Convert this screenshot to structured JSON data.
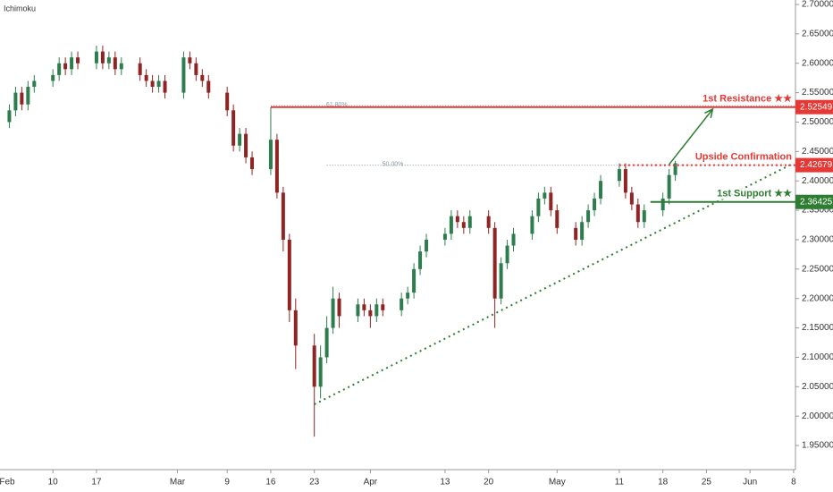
{
  "chart_data": {
    "type": "candlestick",
    "indicator": "Ichimoku",
    "x": [
      34,
      35,
      36,
      37,
      38,
      41,
      42,
      43,
      44,
      45,
      48,
      49,
      50,
      51,
      52,
      55,
      56,
      57,
      58,
      59,
      62,
      63,
      64,
      65,
      66,
      69,
      70,
      71,
      72,
      73,
      76,
      77,
      78,
      79,
      80,
      83,
      84,
      85,
      86,
      87,
      90,
      91,
      92,
      93,
      94,
      97,
      98,
      99,
      100,
      101,
      104,
      105,
      106,
      107,
      108,
      111,
      112,
      113,
      114,
      115,
      118,
      119,
      120,
      121,
      122,
      125,
      126,
      127,
      128,
      129,
      132,
      133,
      134,
      135,
      136,
      139,
      140,
      141
    ],
    "open": [
      2.5,
      2.52,
      2.55,
      2.53,
      2.56,
      2.57,
      2.58,
      2.6,
      2.59,
      2.61,
      2.6,
      2.62,
      2.6,
      2.61,
      2.59,
      2.6,
      2.58,
      2.57,
      2.56,
      2.57,
      2.55,
      2.61,
      2.6,
      2.58,
      2.57,
      2.55,
      2.52,
      2.46,
      2.48,
      2.44,
      2.42,
      2.47,
      2.38,
      2.3,
      2.18,
      2.12,
      2.05,
      2.1,
      2.15,
      2.2,
      2.17,
      2.19,
      2.18,
      2.17,
      2.19,
      2.18,
      2.2,
      2.21,
      2.25,
      2.28,
      2.3,
      2.31,
      2.34,
      2.33,
      2.32,
      2.34,
      2.32,
      2.2,
      2.26,
      2.29,
      2.31,
      2.34,
      2.37,
      2.38,
      2.35,
      2.32,
      2.3,
      2.33,
      2.35,
      2.37,
      2.4,
      2.42,
      2.38,
      2.36,
      2.33,
      2.35,
      2.37,
      2.41
    ],
    "high": [
      2.53,
      2.56,
      2.56,
      2.57,
      2.58,
      2.59,
      2.61,
      2.61,
      2.62,
      2.62,
      2.63,
      2.63,
      2.62,
      2.62,
      2.61,
      2.61,
      2.59,
      2.58,
      2.58,
      2.58,
      2.62,
      2.62,
      2.61,
      2.59,
      2.58,
      2.56,
      2.53,
      2.49,
      2.49,
      2.45,
      2.525,
      2.48,
      2.39,
      2.31,
      2.2,
      2.14,
      2.12,
      2.17,
      2.22,
      2.21,
      2.2,
      2.2,
      2.19,
      2.2,
      2.2,
      2.21,
      2.22,
      2.26,
      2.29,
      2.31,
      2.32,
      2.35,
      2.35,
      2.34,
      2.35,
      2.35,
      2.33,
      2.27,
      2.3,
      2.32,
      2.35,
      2.38,
      2.39,
      2.39,
      2.36,
      2.33,
      2.34,
      2.36,
      2.38,
      2.41,
      2.43,
      2.43,
      2.39,
      2.37,
      2.36,
      2.38,
      2.42,
      2.434
    ],
    "low": [
      2.49,
      2.51,
      2.52,
      2.52,
      2.55,
      2.56,
      2.57,
      2.58,
      2.58,
      2.59,
      2.59,
      2.59,
      2.59,
      2.58,
      2.58,
      2.57,
      2.56,
      2.55,
      2.55,
      2.54,
      2.54,
      2.59,
      2.57,
      2.56,
      2.54,
      2.51,
      2.45,
      2.45,
      2.43,
      2.41,
      2.41,
      2.37,
      2.28,
      2.16,
      2.08,
      1.965,
      2.03,
      2.09,
      2.14,
      2.15,
      2.16,
      2.17,
      2.15,
      2.16,
      2.17,
      2.17,
      2.19,
      2.2,
      2.24,
      2.27,
      2.29,
      2.3,
      2.32,
      2.31,
      2.31,
      2.31,
      2.15,
      2.19,
      2.25,
      2.28,
      2.3,
      2.33,
      2.36,
      2.34,
      2.31,
      2.29,
      2.29,
      2.32,
      2.34,
      2.36,
      2.39,
      2.37,
      2.35,
      2.32,
      2.32,
      2.34,
      2.36,
      2.4
    ],
    "close": [
      2.52,
      2.55,
      2.53,
      2.56,
      2.57,
      2.58,
      2.6,
      2.59,
      2.61,
      2.6,
      2.62,
      2.6,
      2.61,
      2.59,
      2.6,
      2.58,
      2.57,
      2.56,
      2.57,
      2.55,
      2.61,
      2.6,
      2.58,
      2.57,
      2.55,
      2.52,
      2.46,
      2.48,
      2.44,
      2.42,
      2.47,
      2.38,
      2.3,
      2.18,
      2.12,
      2.05,
      2.1,
      2.15,
      2.2,
      2.17,
      2.19,
      2.18,
      2.17,
      2.19,
      2.18,
      2.2,
      2.21,
      2.25,
      2.28,
      2.3,
      2.31,
      2.34,
      2.33,
      2.32,
      2.34,
      2.32,
      2.2,
      2.26,
      2.29,
      2.31,
      2.34,
      2.37,
      2.38,
      2.35,
      2.32,
      2.3,
      2.33,
      2.35,
      2.37,
      2.4,
      2.42,
      2.38,
      2.36,
      2.33,
      2.35,
      2.37,
      2.41,
      2.43
    ],
    "up_color": "#2e7d4f",
    "down_color": "#8e2424",
    "xlim": [
      32.5,
      160.3
    ],
    "ylim": [
      1.909,
      2.7076
    ],
    "xticks": [
      {
        "value": 32,
        "label": "Feb"
      },
      {
        "value": 41,
        "label": "10"
      },
      {
        "value": 48,
        "label": "17"
      },
      {
        "value": 61,
        "label": "Mar"
      },
      {
        "value": 69,
        "label": "9"
      },
      {
        "value": 76,
        "label": "16"
      },
      {
        "value": 83,
        "label": "23"
      },
      {
        "value": 92,
        "label": "Apr"
      },
      {
        "value": 104,
        "label": "13"
      },
      {
        "value": 111,
        "label": "20"
      },
      {
        "value": 122,
        "label": "May"
      },
      {
        "value": 132,
        "label": "11"
      },
      {
        "value": 139,
        "label": "18"
      },
      {
        "value": 146,
        "label": "25"
      },
      {
        "value": 153,
        "label": "Jun"
      },
      {
        "value": 160,
        "label": "8"
      }
    ],
    "yticks": [
      {
        "value": 1.95,
        "label": "1.95000"
      },
      {
        "value": 2.0,
        "label": "2.00000"
      },
      {
        "value": 2.05,
        "label": "2.05000"
      },
      {
        "value": 2.1,
        "label": "2.10000"
      },
      {
        "value": 2.15,
        "label": "2.15000"
      },
      {
        "value": 2.2,
        "label": "2.20000"
      },
      {
        "value": 2.25,
        "label": "2.25000"
      },
      {
        "value": 2.3,
        "label": "2.30000"
      },
      {
        "value": 2.35,
        "label": "2.35000"
      },
      {
        "value": 2.4,
        "label": "2.40000"
      },
      {
        "value": 2.45,
        "label": "2.45000"
      },
      {
        "value": 2.5,
        "label": "2.50000"
      },
      {
        "value": 2.55,
        "label": "2.55000"
      },
      {
        "value": 2.6,
        "label": "2.60000"
      },
      {
        "value": 2.65,
        "label": "2.65000"
      },
      {
        "value": 2.7,
        "label": "2.70000"
      }
    ],
    "levels": [
      {
        "name": "1st Resistance ★★",
        "value": 2.52549,
        "color": "#e53935",
        "start": 76,
        "style": "solid"
      },
      {
        "name": "Upside Confirmation",
        "value": 2.42679,
        "color": "#e53935",
        "start": 132,
        "style": "dotted"
      },
      {
        "name": "1st Support ★★",
        "value": 2.36425,
        "color": "#2e7d32",
        "start": 137,
        "style": "solid"
      }
    ],
    "fib_levels": [
      {
        "label": "61.80%",
        "value": 2.5278,
        "start": 76
      },
      {
        "label": "50.00%",
        "value": 2.4268,
        "start": 85
      }
    ],
    "trendline": {
      "x": [
        83,
        160
      ],
      "y": [
        2.02,
        2.43
      ],
      "color": "#2e7d32"
    },
    "arrow": {
      "x": [
        140,
        147
      ],
      "y": [
        2.428,
        2.522
      ],
      "color": "#2e7d32"
    }
  }
}
